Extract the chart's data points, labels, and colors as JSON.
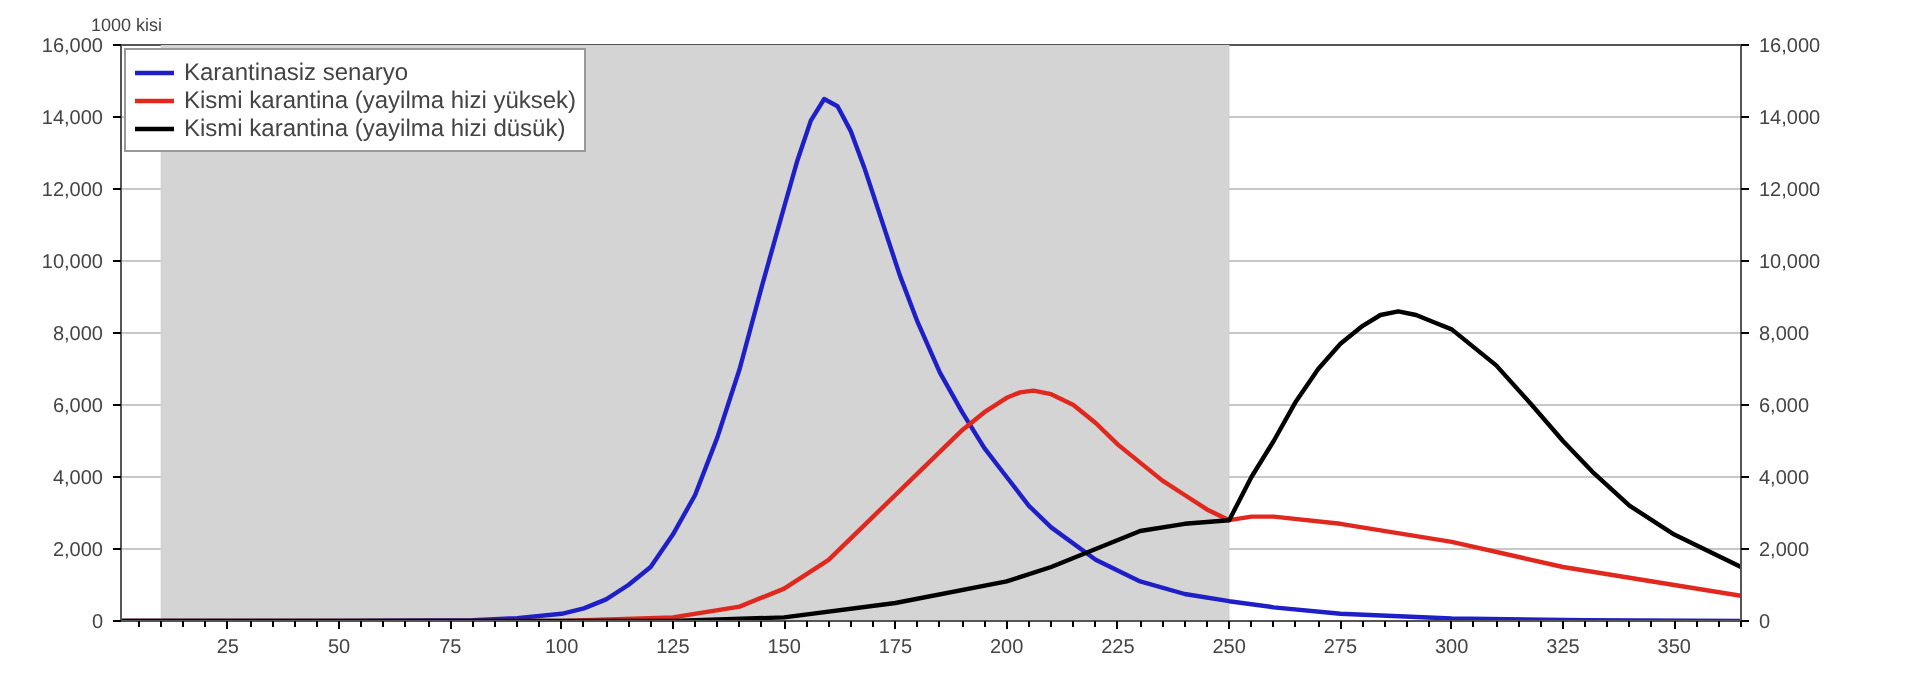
{
  "chart_data": {
    "type": "line",
    "ylabel": "1000 kisi",
    "xlim": [
      1,
      365
    ],
    "xticks": [
      25,
      50,
      75,
      100,
      125,
      150,
      175,
      200,
      225,
      250,
      275,
      300,
      325,
      350
    ],
    "ylim": [
      0,
      16000
    ],
    "yticks": [
      {
        "value": 0,
        "label": "0"
      },
      {
        "value": 2000,
        "label": "2,000"
      },
      {
        "value": 4000,
        "label": "4,000"
      },
      {
        "value": 6000,
        "label": "6,000"
      },
      {
        "value": 8000,
        "label": "8,000"
      },
      {
        "value": 10000,
        "label": "10,000"
      },
      {
        "value": 12000,
        "label": "12,000"
      },
      {
        "value": 14000,
        "label": "14,000"
      },
      {
        "value": 16000,
        "label": "16,000"
      }
    ],
    "y2lim": [
      0,
      16000
    ],
    "y2ticks": [
      {
        "value": 0,
        "label": "0"
      },
      {
        "value": 2000,
        "label": "2,000"
      },
      {
        "value": 4000,
        "label": "4,000"
      },
      {
        "value": 6000,
        "label": "6,000"
      },
      {
        "value": 8000,
        "label": "8,000"
      },
      {
        "value": 10000,
        "label": "10,000"
      },
      {
        "value": 12000,
        "label": "12,000"
      },
      {
        "value": 14000,
        "label": "14,000"
      },
      {
        "value": 16000,
        "label": "16,000"
      }
    ],
    "grid": "y",
    "legend": "top left",
    "line_style": "solid",
    "marker": "none",
    "bands": [
      {
        "axis": "x",
        "from": 10,
        "to": 250,
        "color": "#d4d4d4"
      }
    ],
    "series": [
      {
        "name": "Karantinasiz senaryo",
        "color": "#1f1fc8",
        "x": [
          1,
          50,
          80,
          90,
          100,
          105,
          110,
          115,
          120,
          125,
          130,
          135,
          140,
          145,
          150,
          153,
          156,
          159,
          162,
          165,
          168,
          172,
          176,
          180,
          185,
          190,
          195,
          200,
          205,
          210,
          220,
          230,
          240,
          250,
          260,
          275,
          300,
          330,
          365
        ],
        "values": [
          0,
          0,
          20,
          80,
          200,
          350,
          600,
          1000,
          1500,
          2400,
          3500,
          5100,
          7000,
          9300,
          11500,
          12800,
          13900,
          14500,
          14300,
          13600,
          12600,
          11100,
          9600,
          8300,
          6900,
          5800,
          4800,
          4000,
          3200,
          2600,
          1700,
          1100,
          750,
          550,
          380,
          200,
          70,
          20,
          0
        ]
      },
      {
        "name": "Kismi karantina (yayilma hizi yüksek)",
        "color": "#e0281e",
        "x": [
          1,
          100,
          125,
          140,
          150,
          160,
          170,
          180,
          190,
          195,
          200,
          203,
          206,
          210,
          215,
          220,
          225,
          230,
          235,
          240,
          245,
          250,
          255,
          260,
          275,
          300,
          325,
          350,
          365
        ],
        "values": [
          0,
          0,
          100,
          400,
          900,
          1700,
          2900,
          4100,
          5300,
          5800,
          6200,
          6350,
          6400,
          6300,
          6000,
          5500,
          4900,
          4400,
          3900,
          3500,
          3100,
          2800,
          2900,
          2900,
          2700,
          2200,
          1500,
          1000,
          700
        ]
      },
      {
        "name": "Kismi karantina (yayilma hizi düsük)",
        "color": "#000000",
        "x": [
          1,
          125,
          150,
          175,
          200,
          210,
          220,
          230,
          240,
          250,
          255,
          260,
          265,
          270,
          275,
          280,
          284,
          288,
          292,
          296,
          300,
          305,
          310,
          318,
          325,
          332,
          340,
          350,
          365
        ],
        "values": [
          0,
          0,
          100,
          500,
          1100,
          1500,
          2000,
          2500,
          2700,
          2800,
          4000,
          5000,
          6100,
          7000,
          7700,
          8200,
          8500,
          8600,
          8500,
          8300,
          8100,
          7600,
          7100,
          6000,
          5000,
          4100,
          3200,
          2400,
          1500
        ]
      }
    ]
  }
}
